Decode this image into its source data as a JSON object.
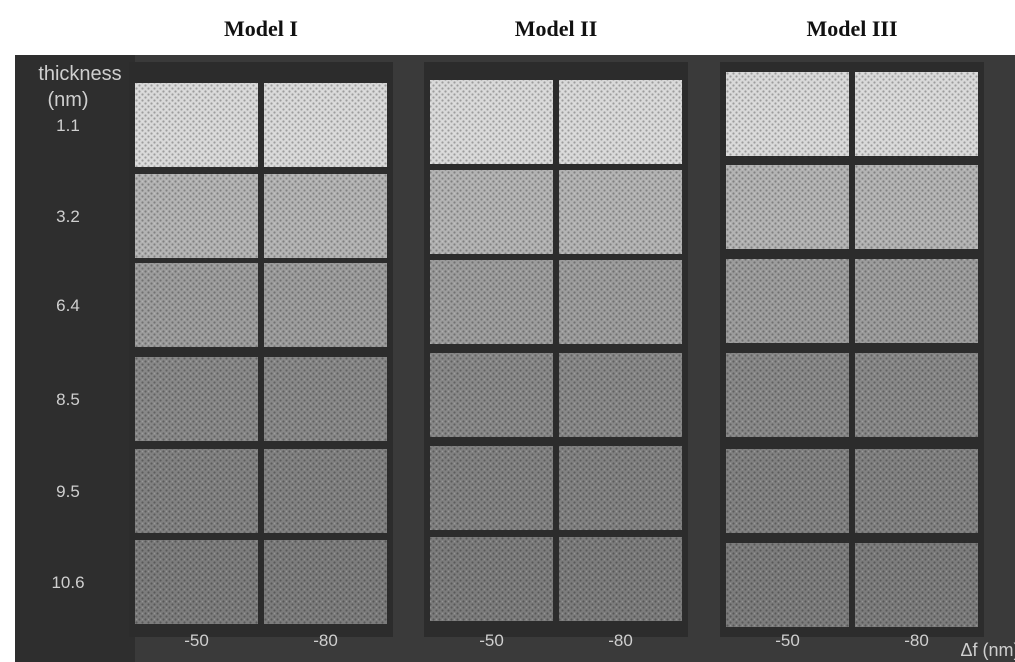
{
  "header_label": {
    "line1": "thickness",
    "line2": "(nm)"
  },
  "thickness": [
    "1.1",
    "3.2",
    "6.4",
    "8.5",
    "9.5",
    "10.6"
  ],
  "panels": [
    {
      "title": "Model I",
      "defocus": [
        "-50",
        "-80"
      ]
    },
    {
      "title": "Model II",
      "defocus": [
        "-50",
        "-80"
      ]
    },
    {
      "title": "Model III",
      "defocus": [
        "-50",
        "-80"
      ]
    }
  ],
  "defocus_axis_label": "Δf (nm)"
}
